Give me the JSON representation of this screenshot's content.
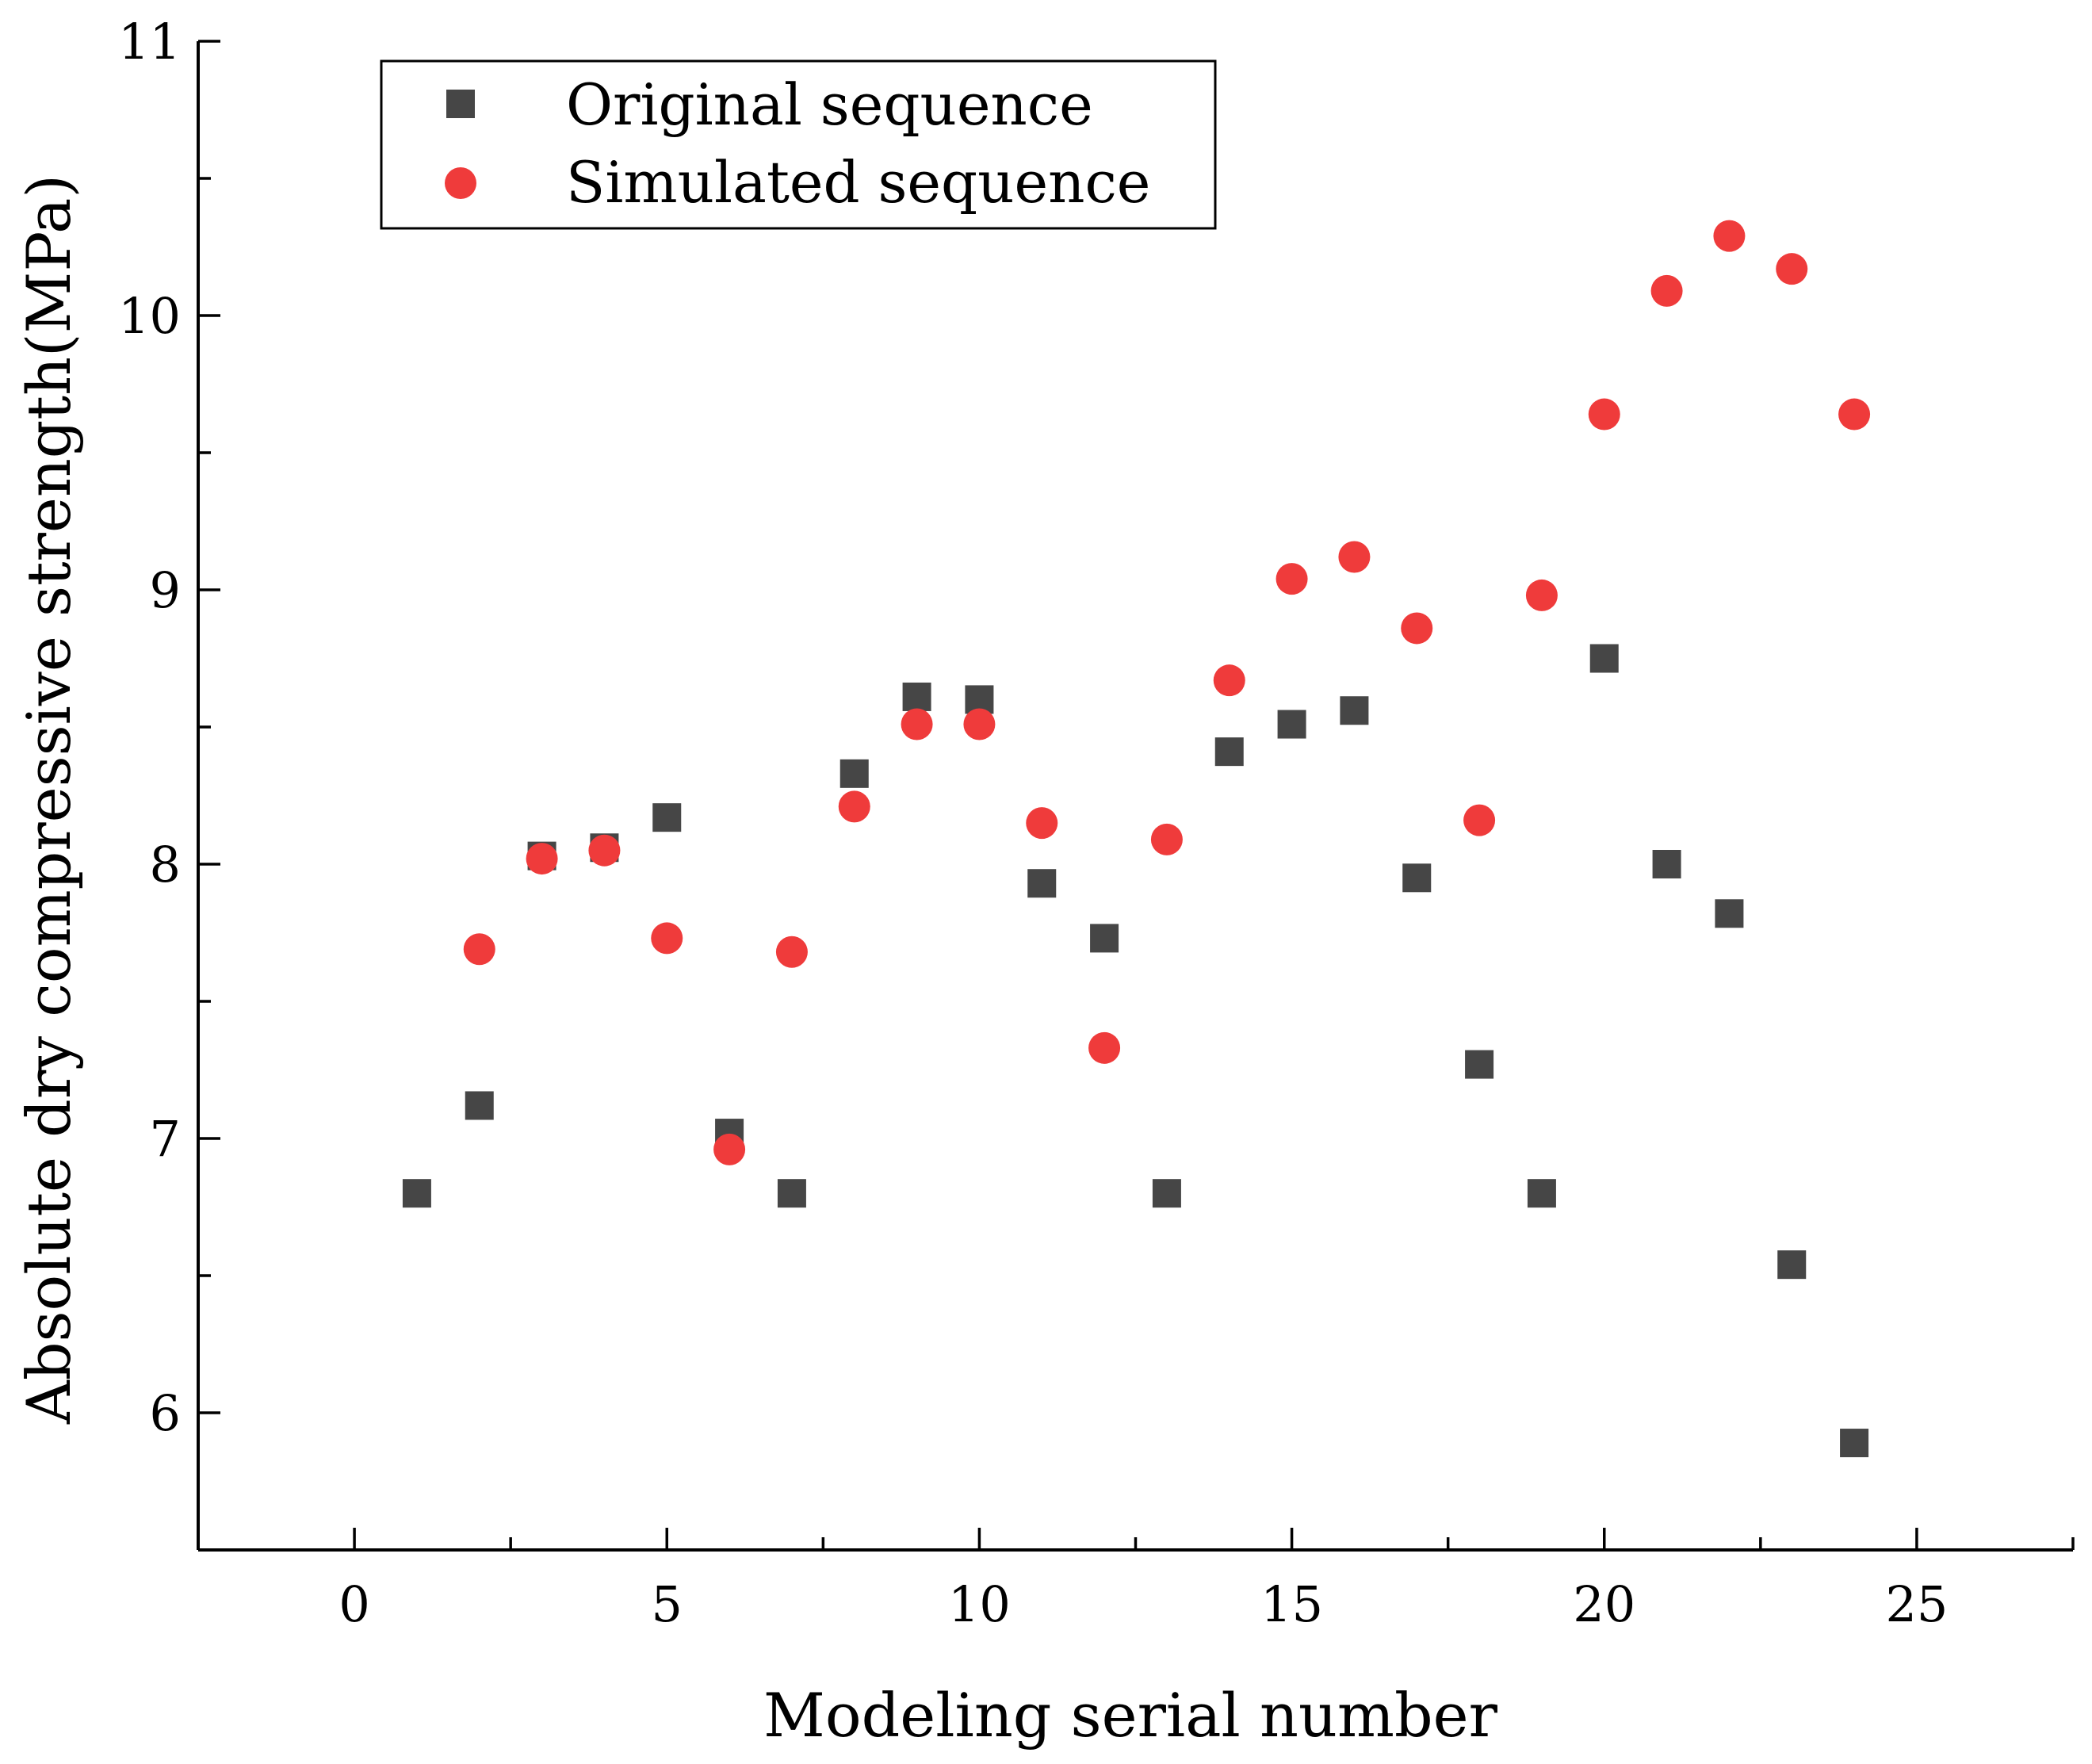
{
  "chart_data": {
    "type": "scatter",
    "title": "",
    "xlabel": "Modeling serial number",
    "ylabel": "Absolute dry compressive strength(MPa)",
    "xlim": [
      -2.5,
      27.5
    ],
    "ylim": [
      5.5,
      11
    ],
    "x_ticks": [
      "0",
      "5",
      "10",
      "15",
      "20",
      "25"
    ],
    "x_tick_values": [
      0,
      5,
      10,
      15,
      20,
      25
    ],
    "y_ticks": [
      "6",
      "7",
      "8",
      "9",
      "10",
      "11"
    ],
    "y_tick_values": [
      6,
      7,
      8,
      9,
      10,
      11
    ],
    "legend_position": "top-left",
    "series": [
      {
        "name": "Original sequence",
        "marker": "square",
        "color": "#464646",
        "x": [
          1,
          2,
          3,
          4,
          5,
          6,
          7,
          8,
          9,
          10,
          11,
          12,
          13,
          14,
          15,
          16,
          17,
          18,
          19,
          20,
          21,
          22,
          23,
          24
        ],
        "y": [
          6.8,
          7.12,
          8.03,
          8.06,
          8.17,
          7.02,
          6.8,
          8.33,
          8.61,
          8.6,
          7.93,
          7.73,
          6.8,
          8.41,
          8.51,
          8.56,
          7.95,
          7.27,
          6.8,
          8.75,
          8.0,
          7.82,
          6.54,
          5.89
        ]
      },
      {
        "name": "Simulated sequence",
        "marker": "circle",
        "color": "#ef3b3b",
        "x": [
          2,
          3,
          4,
          5,
          6,
          7,
          8,
          9,
          10,
          11,
          12,
          13,
          14,
          15,
          16,
          17,
          18,
          19,
          20,
          21,
          22,
          23,
          24
        ],
        "y": [
          7.69,
          8.02,
          8.05,
          7.73,
          6.96,
          7.68,
          8.21,
          8.51,
          8.51,
          8.15,
          7.33,
          8.09,
          8.67,
          9.04,
          9.12,
          8.86,
          8.16,
          8.98,
          9.64,
          10.09,
          10.29,
          10.17,
          9.64
        ]
      }
    ]
  }
}
